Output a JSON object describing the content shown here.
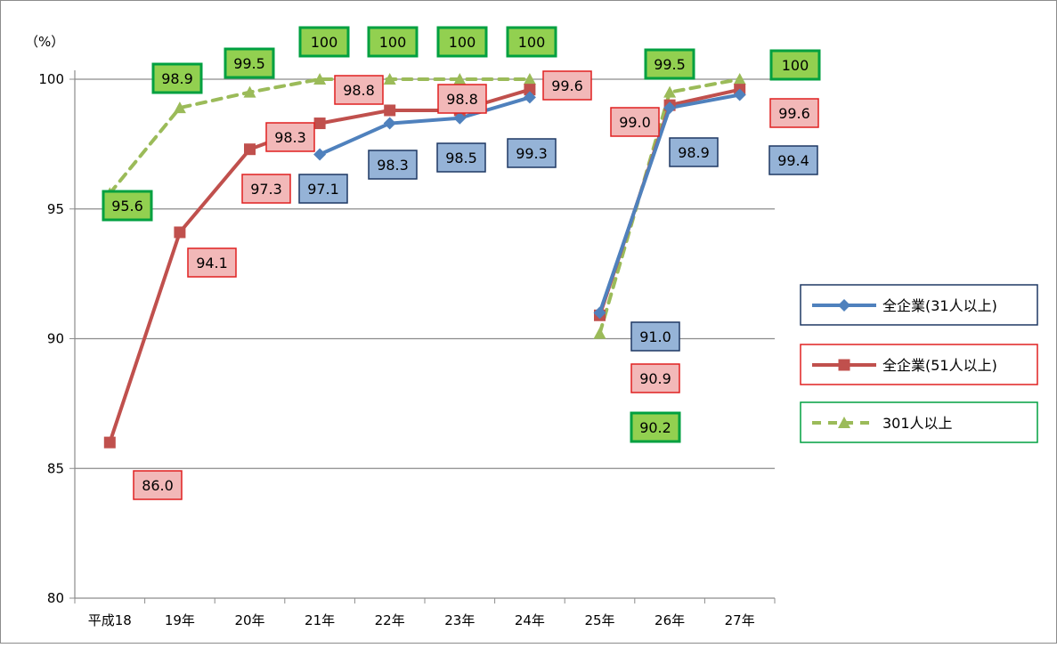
{
  "chart_data": {
    "type": "line",
    "title": "",
    "unit_label": "（%）",
    "xlabel": "",
    "ylabel": "",
    "ylim": [
      80,
      100
    ],
    "yticks": [
      "80",
      "85",
      "90",
      "95",
      "100"
    ],
    "grid": true,
    "legend_position": "right",
    "categories": [
      "平成18",
      "19年",
      "20年",
      "21年",
      "22年",
      "23年",
      "24年",
      "25年",
      "26年",
      "27年"
    ],
    "series": [
      {
        "name": "全企業(31人以上)",
        "color": "#4F81BD",
        "marker": "diamond",
        "dash": "solid",
        "values": [
          null,
          null,
          null,
          97.1,
          98.3,
          98.5,
          99.3,
          91.0,
          98.9,
          99.4
        ],
        "labels": [
          null,
          null,
          null,
          "97.1",
          "98.3",
          "98.5",
          "99.3",
          "91.0",
          "98.9",
          "99.4"
        ],
        "label_fill": "#95B3D7",
        "label_stroke": "#1F3864"
      },
      {
        "name": "全企業(51人以上)",
        "color": "#C0504D",
        "marker": "square",
        "dash": "solid",
        "values": [
          86.0,
          94.1,
          97.3,
          98.3,
          98.8,
          98.8,
          99.6,
          90.9,
          99.0,
          99.6
        ],
        "labels": [
          "86.0",
          "94.1",
          "97.3",
          "98.3",
          "98.8",
          "98.8",
          "99.6",
          "90.9",
          "99.0",
          "99.6"
        ],
        "label_fill": "#F2B8B8",
        "label_stroke": "#E02020"
      },
      {
        "name": "301人以上",
        "color": "#9BBB59",
        "marker": "triangle",
        "dash": "dashed",
        "values": [
          95.6,
          98.9,
          99.5,
          100,
          100,
          100,
          100,
          90.2,
          99.5,
          100
        ],
        "labels": [
          "95.6",
          "98.9",
          "99.5",
          "100",
          "100",
          "100",
          "100",
          "90.2",
          "99.5",
          "100"
        ],
        "label_fill": "#92D050",
        "label_stroke": "#00A040"
      }
    ]
  }
}
